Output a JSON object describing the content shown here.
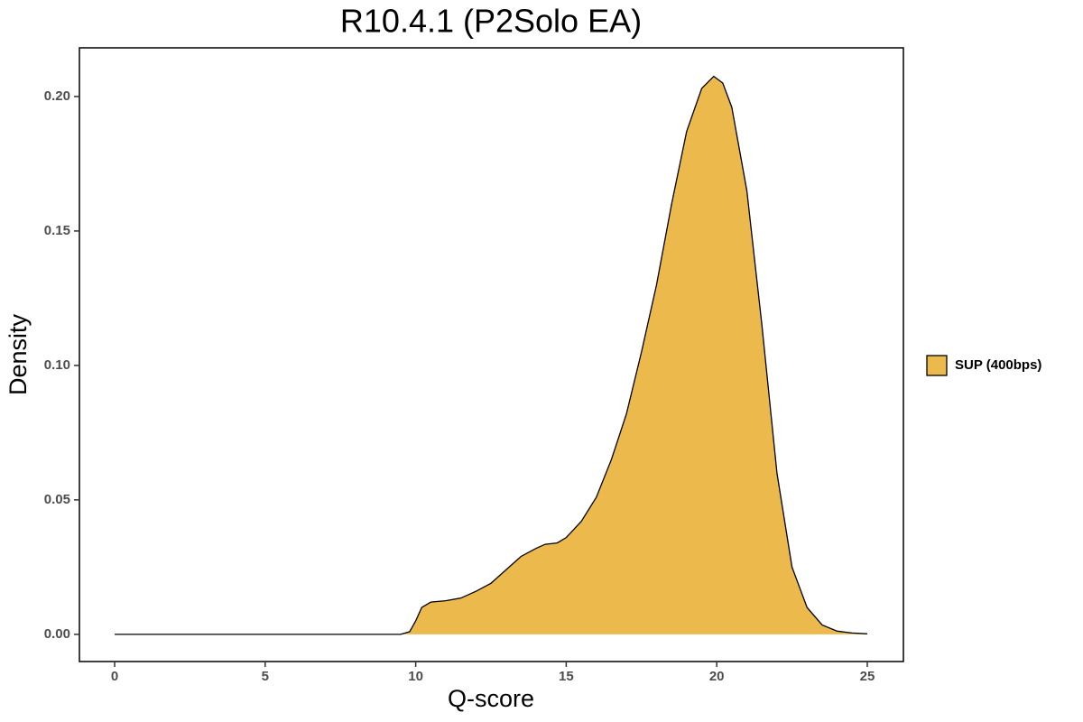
{
  "chart_data": {
    "type": "area",
    "title": "R10.4.1 (P2Solo EA)",
    "x_label": "Q-score",
    "y_label": "Density",
    "x": [
      0,
      9.5,
      9.8,
      10,
      10.2,
      10.5,
      11,
      11.5,
      12,
      12.5,
      13,
      13.5,
      14,
      14.3,
      14.7,
      15,
      15.5,
      16,
      16.5,
      17,
      17.5,
      18,
      18.5,
      19,
      19.5,
      19.9,
      20.2,
      20.5,
      21,
      21.5,
      22,
      22.5,
      23,
      23.5,
      24,
      24.5,
      25
    ],
    "series": [
      {
        "name": "SUP (400bps)",
        "color": "#ecb94c",
        "values": [
          0,
          0,
          0.001,
          0.005,
          0.01,
          0.012,
          0.0125,
          0.0135,
          0.016,
          0.019,
          0.024,
          0.029,
          0.032,
          0.0335,
          0.034,
          0.036,
          0.042,
          0.051,
          0.065,
          0.082,
          0.105,
          0.13,
          0.16,
          0.187,
          0.203,
          0.2075,
          0.205,
          0.196,
          0.165,
          0.115,
          0.06,
          0.025,
          0.01,
          0.0035,
          0.0012,
          0.0005,
          0.0002
        ]
      }
    ],
    "xlim": [
      -1.17,
      26.2
    ],
    "ylim": [
      -0.0101,
      0.2181
    ],
    "xticks": [
      0,
      5,
      10,
      15,
      20,
      25
    ],
    "yticks": [
      {
        "value": 0,
        "label": "0.00"
      },
      {
        "value": 0.05,
        "label": "0.05"
      },
      {
        "value": 0.1,
        "label": "0.10"
      },
      {
        "value": 0.15,
        "label": "0.15"
      },
      {
        "value": 0.2,
        "label": "0.20"
      }
    ],
    "legend": "right",
    "grid": false
  }
}
